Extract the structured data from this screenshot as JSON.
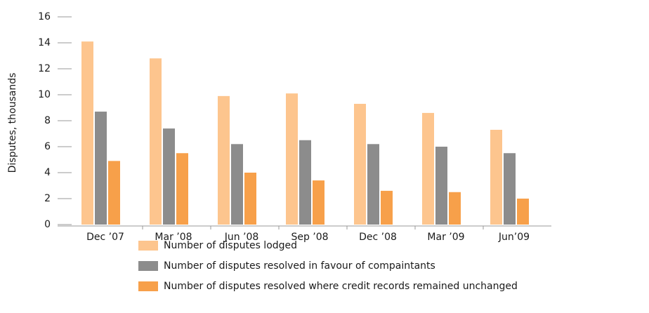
{
  "chart_data": {
    "type": "bar",
    "y_label": "Disputes, thousands",
    "categories": [
      "Dec ’07",
      "Mar ’08",
      "Jun ’08",
      "Sep ’08",
      "Dec ’08",
      "Mar ’09",
      "Jun’09"
    ],
    "series": [
      {
        "name": "Number of disputes lodged",
        "color": "#fdc58e",
        "values": [
          14.1,
          12.8,
          9.9,
          10.1,
          9.3,
          8.6,
          7.3
        ]
      },
      {
        "name": "Number of disputes resolved in favour of compaintants",
        "color": "#8c8c8c",
        "values": [
          8.7,
          7.4,
          6.2,
          6.5,
          6.2,
          6.0,
          5.5
        ]
      },
      {
        "name": "Number of disputes resolved where credit records remained unchanged",
        "color": "#f7a04a",
        "values": [
          4.9,
          5.5,
          4.0,
          3.4,
          2.6,
          2.5,
          2.0
        ]
      }
    ],
    "ylim": [
      0,
      16
    ],
    "yticks": [
      0,
      2,
      4,
      6,
      8,
      10,
      12,
      14,
      16
    ],
    "grid": false,
    "legend": "bottom"
  }
}
